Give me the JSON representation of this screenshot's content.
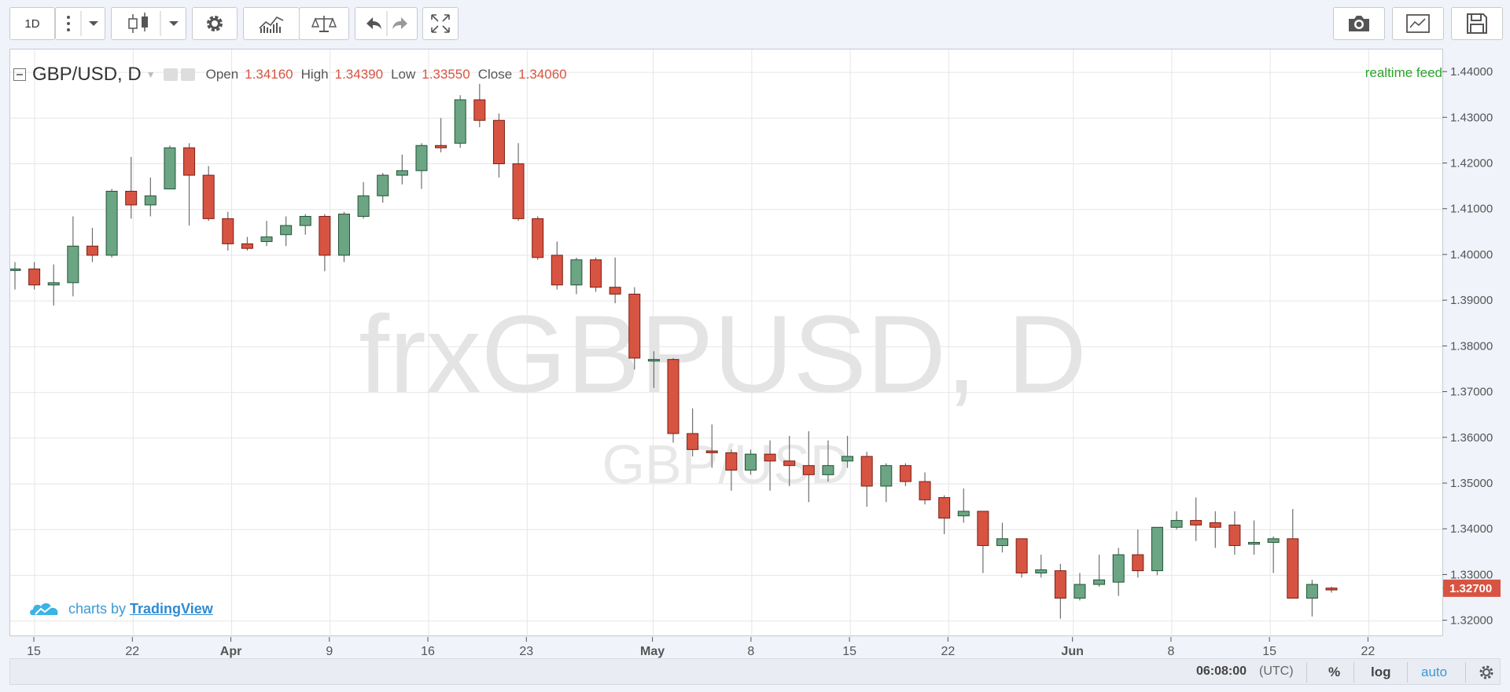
{
  "toolbar": {
    "interval_label": "1D"
  },
  "legend": {
    "symbol": "GBP/USD, D",
    "open_label": "Open",
    "open_value": "1.34160",
    "high_label": "High",
    "high_value": "1.34390",
    "low_label": "Low",
    "low_value": "1.33550",
    "close_label": "Close",
    "close_value": "1.34060"
  },
  "watermark": {
    "main": "frxGBPUSD, D",
    "sub": "GBP/USD"
  },
  "realtime_label": "realtime feed",
  "branding": {
    "prefix": "charts by ",
    "name": "TradingView"
  },
  "bottom_bar": {
    "time": "06:08:00",
    "timezone": "(UTC)",
    "percent_label": "%",
    "log_label": "log",
    "auto_label": "auto"
  },
  "colors": {
    "up": "#6ba583",
    "down": "#d75442",
    "outline": "#225437",
    "last_price_bg": "#d75442"
  },
  "chart_data": {
    "type": "candlestick",
    "y_ticks": [
      "1.44000",
      "1.43000",
      "1.42000",
      "1.41000",
      "1.40000",
      "1.39000",
      "1.38000",
      "1.37000",
      "1.36000",
      "1.35000",
      "1.34000",
      "1.33000",
      "1.32000"
    ],
    "ylim": [
      1.3165,
      1.445
    ],
    "last_price": "1.32700",
    "x_ticks": [
      "15",
      "22",
      "Apr",
      "9",
      "16",
      "23",
      "May",
      "8",
      "15",
      "22",
      "Jun",
      "8",
      "15",
      "22"
    ],
    "candles": [
      {
        "o": 1.397,
        "h": 1.3985,
        "l": 1.3925,
        "c": 1.397
      },
      {
        "o": 1.397,
        "h": 1.3985,
        "l": 1.3925,
        "c": 1.3935
      },
      {
        "o": 1.3935,
        "h": 1.398,
        "l": 1.389,
        "c": 1.394
      },
      {
        "o": 1.394,
        "h": 1.4085,
        "l": 1.391,
        "c": 1.402
      },
      {
        "o": 1.402,
        "h": 1.406,
        "l": 1.3985,
        "c": 1.4
      },
      {
        "o": 1.4,
        "h": 1.4145,
        "l": 1.3995,
        "c": 1.414
      },
      {
        "o": 1.414,
        "h": 1.4215,
        "l": 1.408,
        "c": 1.411
      },
      {
        "o": 1.411,
        "h": 1.417,
        "l": 1.4085,
        "c": 1.413
      },
      {
        "o": 1.4145,
        "h": 1.424,
        "l": 1.4145,
        "c": 1.4235
      },
      {
        "o": 1.4235,
        "h": 1.4245,
        "l": 1.4065,
        "c": 1.4175
      },
      {
        "o": 1.4175,
        "h": 1.4195,
        "l": 1.4075,
        "c": 1.408
      },
      {
        "o": 1.408,
        "h": 1.4095,
        "l": 1.401,
        "c": 1.4025
      },
      {
        "o": 1.4025,
        "h": 1.404,
        "l": 1.401,
        "c": 1.4015
      },
      {
        "o": 1.403,
        "h": 1.4075,
        "l": 1.402,
        "c": 1.404
      },
      {
        "o": 1.4045,
        "h": 1.4085,
        "l": 1.402,
        "c": 1.4065
      },
      {
        "o": 1.4065,
        "h": 1.409,
        "l": 1.4045,
        "c": 1.4085
      },
      {
        "o": 1.4085,
        "h": 1.409,
        "l": 1.3965,
        "c": 1.4
      },
      {
        "o": 1.4,
        "h": 1.4095,
        "l": 1.3985,
        "c": 1.409
      },
      {
        "o": 1.4085,
        "h": 1.416,
        "l": 1.408,
        "c": 1.413
      },
      {
        "o": 1.413,
        "h": 1.418,
        "l": 1.4115,
        "c": 1.4175
      },
      {
        "o": 1.4175,
        "h": 1.422,
        "l": 1.4155,
        "c": 1.4185
      },
      {
        "o": 1.4185,
        "h": 1.4245,
        "l": 1.4145,
        "c": 1.424
      },
      {
        "o": 1.424,
        "h": 1.43,
        "l": 1.4225,
        "c": 1.4235
      },
      {
        "o": 1.4245,
        "h": 1.435,
        "l": 1.4235,
        "c": 1.434
      },
      {
        "o": 1.434,
        "h": 1.4375,
        "l": 1.428,
        "c": 1.4295
      },
      {
        "o": 1.4295,
        "h": 1.431,
        "l": 1.417,
        "c": 1.42
      },
      {
        "o": 1.42,
        "h": 1.4245,
        "l": 1.4075,
        "c": 1.408
      },
      {
        "o": 1.408,
        "h": 1.4085,
        "l": 1.399,
        "c": 1.3995
      },
      {
        "o": 1.4,
        "h": 1.403,
        "l": 1.3925,
        "c": 1.3935
      },
      {
        "o": 1.3935,
        "h": 1.3995,
        "l": 1.3915,
        "c": 1.399
      },
      {
        "o": 1.399,
        "h": 1.3995,
        "l": 1.392,
        "c": 1.393
      },
      {
        "o": 1.393,
        "h": 1.3995,
        "l": 1.3895,
        "c": 1.3915
      },
      {
        "o": 1.3915,
        "h": 1.393,
        "l": 1.375,
        "c": 1.3775
      },
      {
        "o": 1.377,
        "h": 1.379,
        "l": 1.371,
        "c": 1.3772
      },
      {
        "o": 1.3772,
        "h": 1.3775,
        "l": 1.359,
        "c": 1.361
      },
      {
        "o": 1.361,
        "h": 1.3665,
        "l": 1.356,
        "c": 1.3575
      },
      {
        "o": 1.3572,
        "h": 1.363,
        "l": 1.3535,
        "c": 1.3568
      },
      {
        "o": 1.3568,
        "h": 1.3575,
        "l": 1.3485,
        "c": 1.353
      },
      {
        "o": 1.353,
        "h": 1.3575,
        "l": 1.352,
        "c": 1.3565
      },
      {
        "o": 1.3565,
        "h": 1.3595,
        "l": 1.3485,
        "c": 1.355
      },
      {
        "o": 1.355,
        "h": 1.3605,
        "l": 1.3495,
        "c": 1.354
      },
      {
        "o": 1.354,
        "h": 1.3615,
        "l": 1.346,
        "c": 1.352
      },
      {
        "o": 1.352,
        "h": 1.3595,
        "l": 1.3505,
        "c": 1.354
      },
      {
        "o": 1.355,
        "h": 1.3605,
        "l": 1.3535,
        "c": 1.356
      },
      {
        "o": 1.356,
        "h": 1.357,
        "l": 1.345,
        "c": 1.3495
      },
      {
        "o": 1.3495,
        "h": 1.3545,
        "l": 1.346,
        "c": 1.354
      },
      {
        "o": 1.354,
        "h": 1.3545,
        "l": 1.3495,
        "c": 1.3505
      },
      {
        "o": 1.3505,
        "h": 1.3525,
        "l": 1.3455,
        "c": 1.3465
      },
      {
        "o": 1.347,
        "h": 1.3475,
        "l": 1.339,
        "c": 1.3425
      },
      {
        "o": 1.343,
        "h": 1.349,
        "l": 1.3415,
        "c": 1.344
      },
      {
        "o": 1.344,
        "h": 1.344,
        "l": 1.3305,
        "c": 1.3365
      },
      {
        "o": 1.3365,
        "h": 1.3415,
        "l": 1.335,
        "c": 1.338
      },
      {
        "o": 1.338,
        "h": 1.338,
        "l": 1.3295,
        "c": 1.3305
      },
      {
        "o": 1.3305,
        "h": 1.3345,
        "l": 1.3295,
        "c": 1.3312
      },
      {
        "o": 1.331,
        "h": 1.3325,
        "l": 1.3205,
        "c": 1.325
      },
      {
        "o": 1.325,
        "h": 1.3305,
        "l": 1.3245,
        "c": 1.328
      },
      {
        "o": 1.328,
        "h": 1.3345,
        "l": 1.3275,
        "c": 1.329
      },
      {
        "o": 1.3285,
        "h": 1.336,
        "l": 1.3255,
        "c": 1.3345
      },
      {
        "o": 1.3345,
        "h": 1.34,
        "l": 1.3295,
        "c": 1.331
      },
      {
        "o": 1.331,
        "h": 1.3405,
        "l": 1.33,
        "c": 1.3405
      },
      {
        "o": 1.3405,
        "h": 1.344,
        "l": 1.34,
        "c": 1.342
      },
      {
        "o": 1.342,
        "h": 1.347,
        "l": 1.3375,
        "c": 1.341
      },
      {
        "o": 1.3415,
        "h": 1.344,
        "l": 1.336,
        "c": 1.3405
      },
      {
        "o": 1.341,
        "h": 1.344,
        "l": 1.3345,
        "c": 1.3365
      },
      {
        "o": 1.3368,
        "h": 1.342,
        "l": 1.3345,
        "c": 1.3372
      },
      {
        "o": 1.3372,
        "h": 1.3385,
        "l": 1.3305,
        "c": 1.338
      },
      {
        "o": 1.338,
        "h": 1.3445,
        "l": 1.325,
        "c": 1.325
      },
      {
        "o": 1.325,
        "h": 1.329,
        "l": 1.321,
        "c": 1.328
      },
      {
        "o": 1.3272,
        "h": 1.3275,
        "l": 1.3262,
        "c": 1.3268
      }
    ]
  }
}
